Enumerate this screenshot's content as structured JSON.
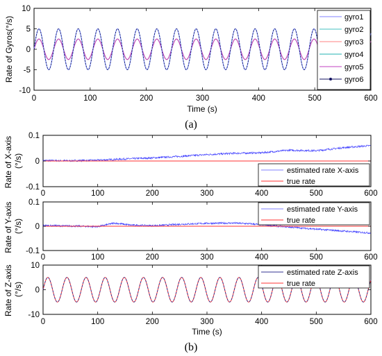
{
  "colors": {
    "gyro1": "#8080ff",
    "gyro2": "#40c0c0",
    "gyro3": "#ff8080",
    "gyro4": "#20b0b0",
    "gyro5": "#c040c0",
    "gyro6": "#101060",
    "estimated_rate": "#4040ff",
    "estimated_rate_z": "#303090",
    "true_rate": "#ff3030"
  },
  "chart_data": [
    {
      "id": "gyros",
      "type": "line",
      "xlabel": "Time (s)",
      "ylabel": "Rate of Gyros(°/s)",
      "xlim": [
        0,
        600
      ],
      "ylim": [
        -10,
        10
      ],
      "xticks": [
        "0",
        "100",
        "200",
        "300",
        "400",
        "500",
        "600"
      ],
      "yticks": [
        "-10",
        "-5",
        "0",
        "5",
        "10"
      ],
      "period_s": 35,
      "legend_position": "right",
      "series": [
        {
          "name": "gyro1",
          "amplitude": 5,
          "phase_deg": 0
        },
        {
          "name": "gyro2",
          "amplitude": 5,
          "phase_deg": 0
        },
        {
          "name": "gyro3",
          "amplitude": 2.5,
          "phase_deg": 0
        },
        {
          "name": "gyro4",
          "amplitude": 2.5,
          "phase_deg": 0
        },
        {
          "name": "gyro5",
          "amplitude": 2.5,
          "phase_deg": 0
        },
        {
          "name": "gyro6",
          "amplitude": 5,
          "phase_deg": 0
        }
      ],
      "sublabel": "(a)"
    },
    {
      "id": "x-axis",
      "type": "line",
      "xlabel": "",
      "ylabel": "Rate of X-axis (°/s)",
      "xlim": [
        0,
        600
      ],
      "ylim": [
        -0.1,
        0.1
      ],
      "xticks": [
        "0",
        "100",
        "200",
        "300",
        "400",
        "500",
        "600"
      ],
      "yticks": [
        "-0.1",
        "0",
        "0.1"
      ],
      "legend_position": "bottom-right",
      "series": [
        {
          "name": "estimated rate X-axis",
          "x": [
            0,
            50,
            100,
            150,
            200,
            250,
            300,
            350,
            400,
            450,
            500,
            550,
            600
          ],
          "y": [
            0.002,
            0.001,
            0.003,
            0.008,
            0.012,
            0.018,
            0.025,
            0.03,
            0.032,
            0.042,
            0.04,
            0.052,
            0.06
          ]
        },
        {
          "name": "true rate",
          "x": [
            0,
            600
          ],
          "y": [
            0,
            0
          ]
        }
      ]
    },
    {
      "id": "y-axis",
      "type": "line",
      "xlabel": "",
      "ylabel": "Rate of Y-axis (°/s)",
      "xlim": [
        0,
        600
      ],
      "ylim": [
        -0.1,
        0.1
      ],
      "xticks": [
        "0",
        "100",
        "200",
        "300",
        "400",
        "500",
        "600"
      ],
      "yticks": [
        "-0.1",
        "0",
        "0.1"
      ],
      "legend_position": "top-right",
      "series": [
        {
          "name": "estimated rate Y-axis",
          "x": [
            0,
            50,
            100,
            130,
            160,
            200,
            250,
            300,
            350,
            380,
            420,
            460,
            500,
            550,
            600
          ],
          "y": [
            0.003,
            0.001,
            -0.002,
            0.013,
            0.005,
            0.002,
            0.008,
            0.012,
            0.013,
            0.01,
            0.002,
            -0.005,
            -0.012,
            -0.02,
            -0.028
          ]
        },
        {
          "name": "true rate",
          "x": [
            0,
            600
          ],
          "y": [
            0,
            0
          ]
        }
      ]
    },
    {
      "id": "z-axis",
      "type": "line",
      "xlabel": "Time (s)",
      "ylabel": "Rate of Z-axis (°/s)",
      "xlim": [
        0,
        600
      ],
      "ylim": [
        -10,
        10
      ],
      "xticks": [
        "0",
        "100",
        "200",
        "300",
        "400",
        "500",
        "600"
      ],
      "yticks": [
        "-10",
        "0",
        "10"
      ],
      "period_s": 35,
      "legend_position": "top-right",
      "series": [
        {
          "name": "estimated rate Z-axis",
          "amplitude": 5,
          "phase_deg": 0
        },
        {
          "name": "true rate",
          "amplitude": 5,
          "phase_deg": 0
        }
      ],
      "sublabel": "(b)"
    }
  ]
}
